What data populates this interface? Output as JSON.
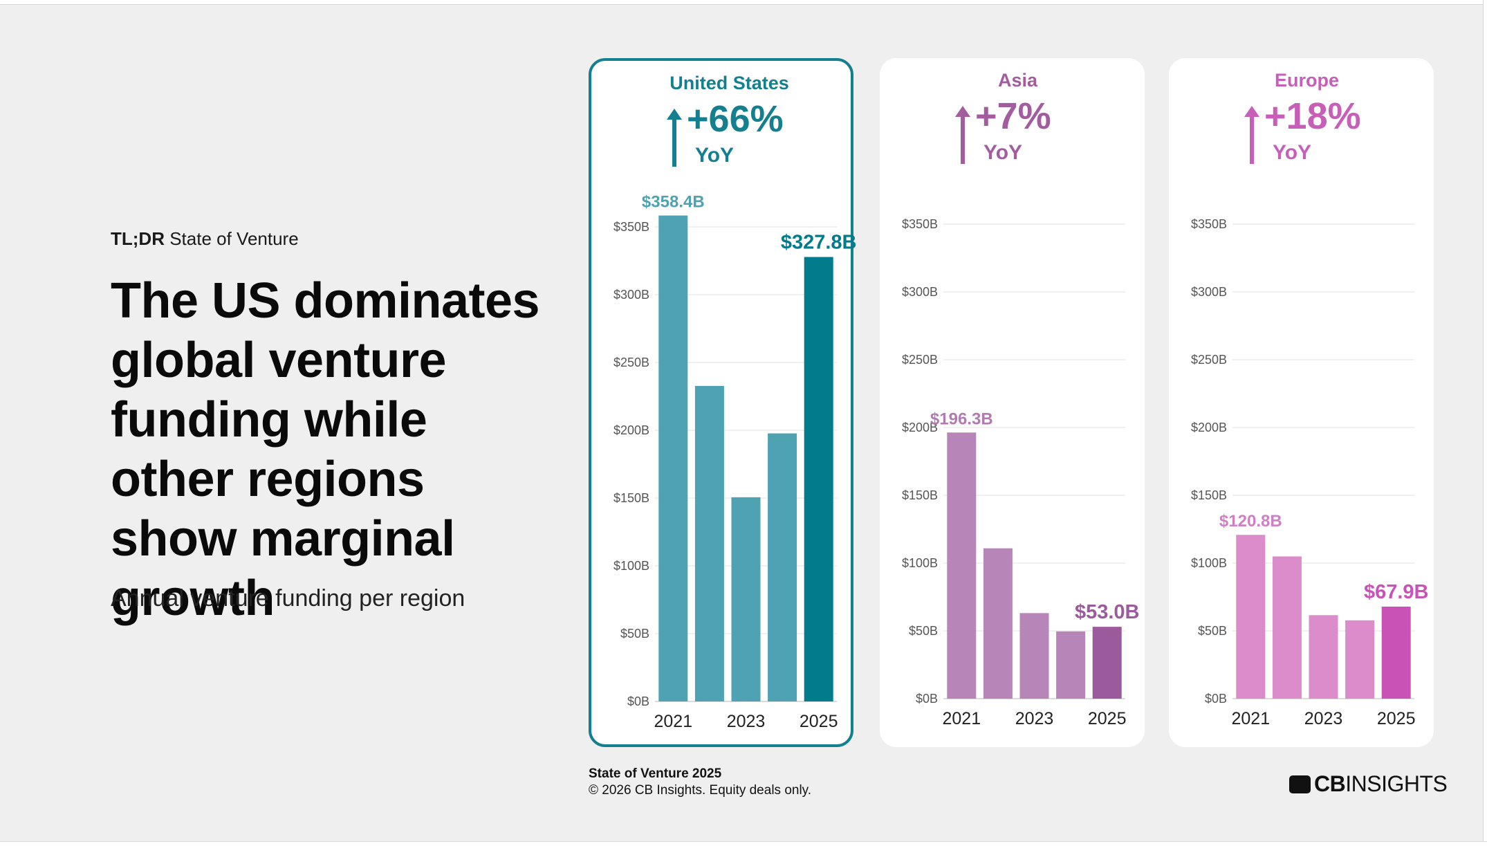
{
  "kicker": {
    "bold": "TL;DR",
    "rest": " State of Venture"
  },
  "headline": "The US dominates global venture funding while other regions show marginal growth",
  "subtitle": "Annual venture funding per region",
  "footer": {
    "title": "State of Venture 2025",
    "copyright": "© 2026 CB Insights. Equity deals only."
  },
  "logo": {
    "bold": "CB",
    "rest": "INSIGHTS",
    "icon": "cb-logo-icon"
  },
  "chart_data": [
    {
      "type": "bar",
      "title": "United States",
      "growth": "+66%",
      "growth_label": "YoY",
      "icon": "up-arrow-icon",
      "categories": [
        "2021",
        "2022",
        "2023",
        "2024",
        "2025"
      ],
      "xtick_labels": [
        "2021",
        "",
        "2023",
        "",
        "2025"
      ],
      "values": [
        358.4,
        232.7,
        150.6,
        197.7,
        327.8
      ],
      "labels": [
        "$358.4B",
        "",
        "",
        "",
        "$327.8B"
      ],
      "ylim": [
        0,
        350
      ],
      "yticks": [
        "$0B",
        "$50B",
        "$100B",
        "$150B",
        "$200B",
        "$250B",
        "$300B",
        "$350B"
      ],
      "colors": {
        "accent": "#137f8f",
        "bar": "#4fa2b2",
        "highlight": "#027b8d",
        "label": "#4fa2b2"
      }
    },
    {
      "type": "bar",
      "title": "Asia",
      "growth": "+7%",
      "growth_label": "YoY",
      "icon": "up-arrow-icon",
      "categories": [
        "2021",
        "2022",
        "2023",
        "2024",
        "2025"
      ],
      "xtick_labels": [
        "2021",
        "",
        "2023",
        "",
        "2025"
      ],
      "values": [
        196.3,
        110.9,
        63.1,
        49.6,
        53.0
      ],
      "labels": [
        "$196.3B",
        "",
        "",
        "",
        "$53.0B"
      ],
      "ylim": [
        0,
        350
      ],
      "yticks": [
        "$0B",
        "$50B",
        "$100B",
        "$150B",
        "$200B",
        "$250B",
        "$300B",
        "$350B"
      ],
      "colors": {
        "accent": "#a35d9f",
        "bar": "#b885b8",
        "highlight": "#9a5a9c",
        "label": "#b27ab2"
      }
    },
    {
      "type": "bar",
      "title": "Europe",
      "growth": "+18%",
      "growth_label": "YoY",
      "icon": "up-arrow-icon",
      "categories": [
        "2021",
        "2022",
        "2023",
        "2024",
        "2025"
      ],
      "xtick_labels": [
        "2021",
        "",
        "2023",
        "",
        "2025"
      ],
      "values": [
        120.8,
        104.9,
        61.6,
        57.8,
        67.9
      ],
      "labels": [
        "$120.8B",
        "",
        "",
        "",
        "$67.9B"
      ],
      "ylim": [
        0,
        350
      ],
      "yticks": [
        "$0B",
        "$50B",
        "$100B",
        "$150B",
        "$200B",
        "$250B",
        "$300B",
        "$350B"
      ],
      "colors": {
        "accent": "#c75fb8",
        "bar": "#dc8ccb",
        "highlight": "#c952b6",
        "label": "#d07fc3"
      }
    }
  ]
}
